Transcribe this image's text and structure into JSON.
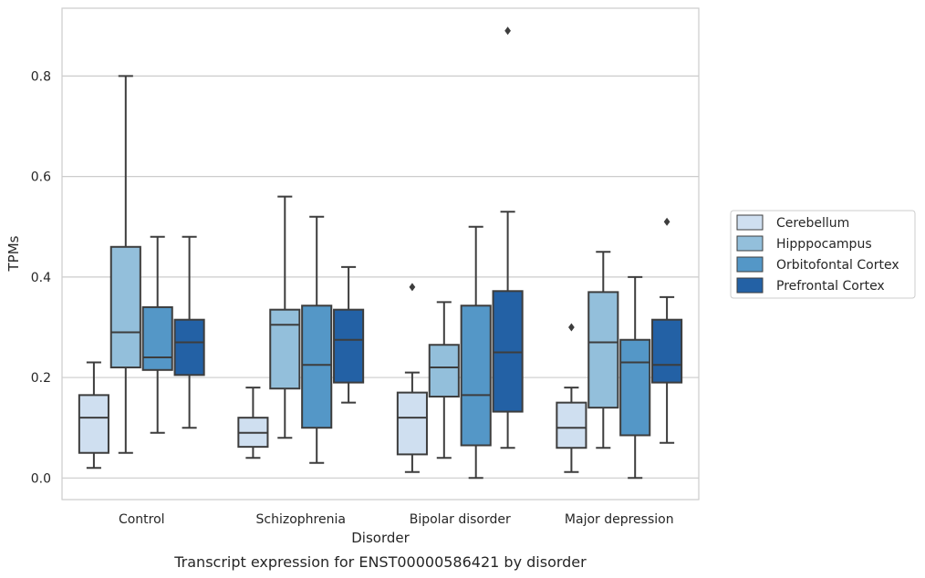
{
  "chart_data": {
    "type": "box",
    "xlabel": "Disorder",
    "ylabel": "TPMs",
    "caption": "Transcript expression for ENST00000586421 by disorder",
    "ylim": [
      -0.043,
      0.935
    ],
    "yticks": [
      0.0,
      0.2,
      0.4,
      0.6,
      0.8
    ],
    "ytick_labels": [
      "0.0",
      "0.2",
      "0.4",
      "0.6",
      "0.8"
    ],
    "grid": "horizontal",
    "legend_position": "right",
    "categories": [
      "Control",
      "Schizophrenia",
      "Bipolar disorder",
      "Major depression"
    ],
    "series": [
      {
        "name": "Cerebellum",
        "color": "#cfdff0",
        "boxes": [
          {
            "whisker_low": 0.02,
            "q1": 0.05,
            "median": 0.12,
            "q3": 0.165,
            "whisker_high": 0.23,
            "outliers": []
          },
          {
            "whisker_low": 0.04,
            "q1": 0.062,
            "median": 0.09,
            "q3": 0.12,
            "whisker_high": 0.18,
            "outliers": []
          },
          {
            "whisker_low": 0.012,
            "q1": 0.047,
            "median": 0.12,
            "q3": 0.17,
            "whisker_high": 0.21,
            "outliers": [
              0.38
            ]
          },
          {
            "whisker_low": 0.012,
            "q1": 0.06,
            "median": 0.1,
            "q3": 0.15,
            "whisker_high": 0.18,
            "outliers": [
              0.3
            ]
          }
        ]
      },
      {
        "name": "Hipppocampus",
        "color": "#93bfdb",
        "boxes": [
          {
            "whisker_low": 0.05,
            "q1": 0.22,
            "median": 0.29,
            "q3": 0.46,
            "whisker_high": 0.8,
            "outliers": []
          },
          {
            "whisker_low": 0.08,
            "q1": 0.178,
            "median": 0.305,
            "q3": 0.335,
            "whisker_high": 0.56,
            "outliers": []
          },
          {
            "whisker_low": 0.04,
            "q1": 0.162,
            "median": 0.22,
            "q3": 0.265,
            "whisker_high": 0.35,
            "outliers": []
          },
          {
            "whisker_low": 0.06,
            "q1": 0.14,
            "median": 0.27,
            "q3": 0.37,
            "whisker_high": 0.45,
            "outliers": []
          }
        ]
      },
      {
        "name": "Orbitofontal Cortex",
        "color": "#5497c7",
        "boxes": [
          {
            "whisker_low": 0.09,
            "q1": 0.215,
            "median": 0.24,
            "q3": 0.34,
            "whisker_high": 0.48,
            "outliers": []
          },
          {
            "whisker_low": 0.03,
            "q1": 0.1,
            "median": 0.225,
            "q3": 0.343,
            "whisker_high": 0.52,
            "outliers": []
          },
          {
            "whisker_low": 0.0,
            "q1": 0.065,
            "median": 0.165,
            "q3": 0.343,
            "whisker_high": 0.5,
            "outliers": []
          },
          {
            "whisker_low": 0.0,
            "q1": 0.085,
            "median": 0.23,
            "q3": 0.275,
            "whisker_high": 0.4,
            "outliers": []
          }
        ]
      },
      {
        "name": "Prefrontal Cortex",
        "color": "#2361a5",
        "boxes": [
          {
            "whisker_low": 0.1,
            "q1": 0.205,
            "median": 0.27,
            "q3": 0.315,
            "whisker_high": 0.48,
            "outliers": []
          },
          {
            "whisker_low": 0.15,
            "q1": 0.19,
            "median": 0.275,
            "q3": 0.335,
            "whisker_high": 0.42,
            "outliers": []
          },
          {
            "whisker_low": 0.06,
            "q1": 0.132,
            "median": 0.25,
            "q3": 0.372,
            "whisker_high": 0.53,
            "outliers": [
              0.89
            ]
          },
          {
            "whisker_low": 0.07,
            "q1": 0.19,
            "median": 0.225,
            "q3": 0.315,
            "whisker_high": 0.36,
            "outliers": [
              0.51
            ]
          }
        ]
      }
    ]
  }
}
